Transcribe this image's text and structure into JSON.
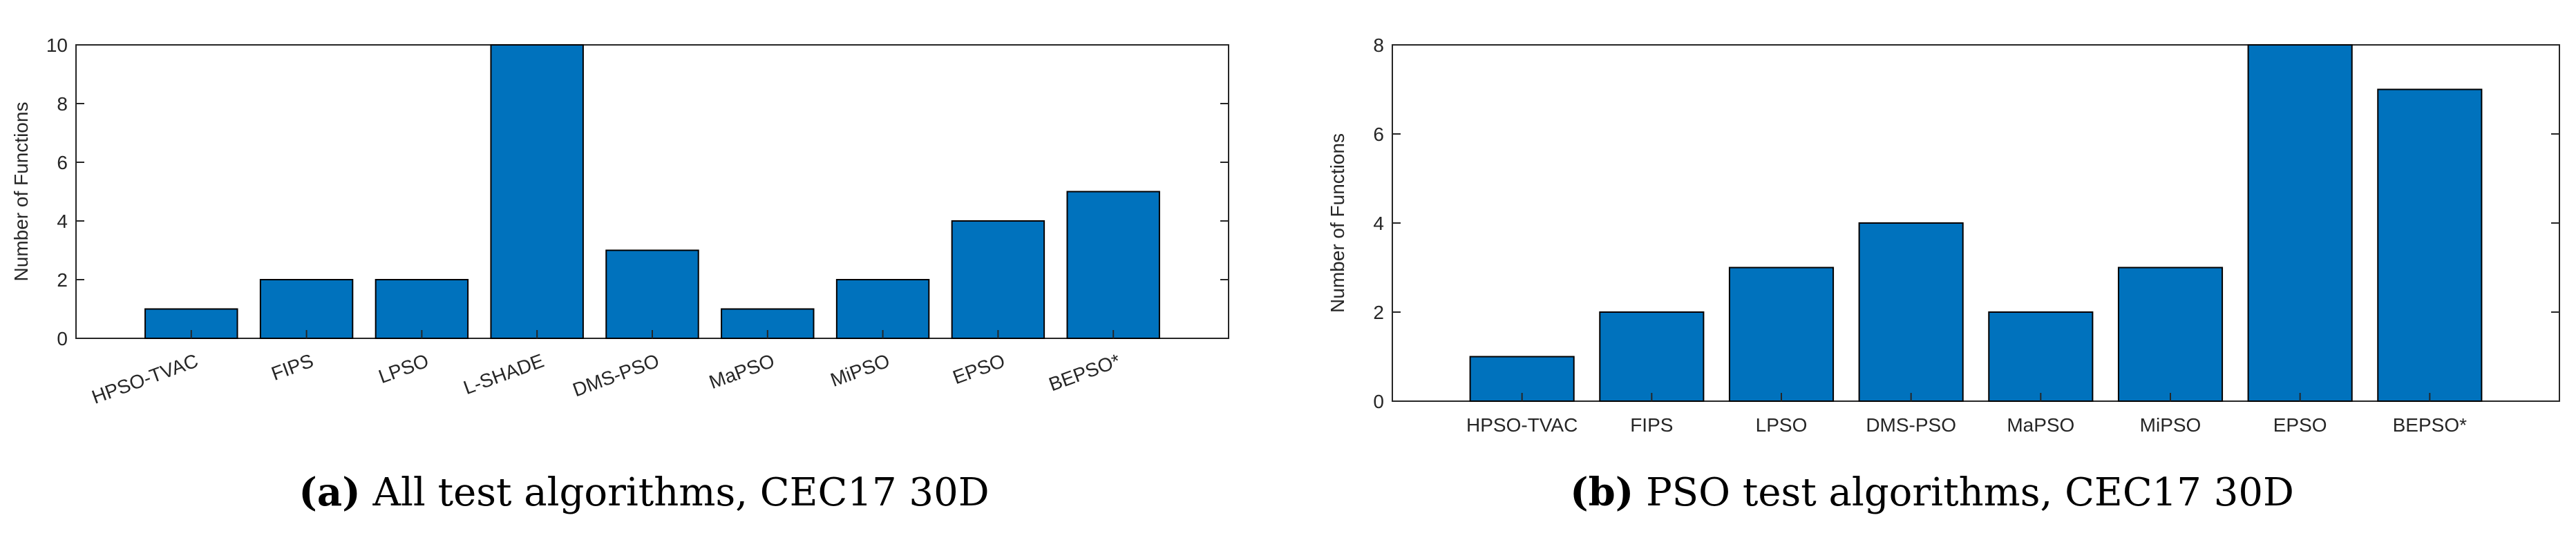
{
  "chart_data": [
    {
      "type": "bar",
      "categories": [
        "HPSO-TVAC",
        "FIPS",
        "LPSO",
        "L-SHADE",
        "DMS-PSO",
        "MaPSO",
        "MiPSO",
        "EPSO",
        "BEPSO*"
      ],
      "values": [
        1,
        2,
        2,
        10,
        3,
        1,
        2,
        4,
        5
      ],
      "ylabel": "Number of Functions",
      "ylim": [
        0,
        10
      ],
      "yticks": [
        0,
        2,
        4,
        6,
        8,
        10
      ],
      "bar_color": "#0072BD",
      "tick_rotation": "rotated",
      "caption_tag": "(a)",
      "caption_text": "All test algorithms, CEC17 30D"
    },
    {
      "type": "bar",
      "categories": [
        "HPSO-TVAC",
        "FIPS",
        "LPSO",
        "DMS-PSO",
        "MaPSO",
        "MiPSO",
        "EPSO",
        "BEPSO*"
      ],
      "values": [
        1,
        2,
        3,
        4,
        2,
        3,
        8,
        7
      ],
      "ylabel": "Number of Functions",
      "ylim": [
        0,
        8
      ],
      "yticks": [
        0,
        2,
        4,
        6,
        8
      ],
      "bar_color": "#0072BD",
      "tick_rotation": "horizontal",
      "caption_tag": "(b)",
      "caption_text": "PSO test algorithms, CEC17 30D"
    }
  ]
}
